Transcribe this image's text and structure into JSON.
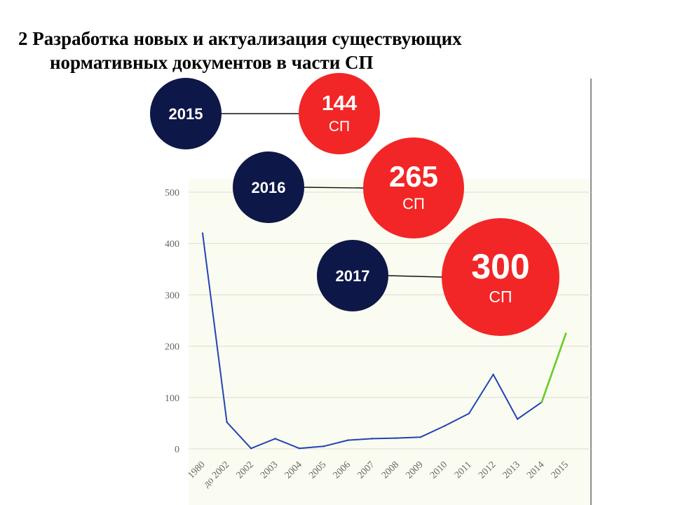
{
  "slide": {
    "title_line1": "2 Разработка новых и актуализация существующих",
    "title_line2": "нормативных документов в части СП"
  },
  "colors": {
    "series_main": "#2243b6",
    "series_highlight": "#66cc22",
    "navy": "#0d1748",
    "red": "#f22626",
    "plot_bg": "#fbfcf1",
    "grid": "#dcdcd0"
  },
  "bubbles": [
    {
      "year": "2015",
      "value": "144",
      "unit": "СП"
    },
    {
      "year": "2016",
      "value": "265",
      "unit": "СП"
    },
    {
      "year": "2017",
      "value": "300",
      "unit": "СП"
    }
  ],
  "chart_data": {
    "type": "line",
    "categories": [
      "1980",
      "до 2002",
      "2002",
      "2003",
      "2004",
      "2005",
      "2006",
      "2007",
      "2008",
      "2009",
      "2010",
      "2011",
      "2012",
      "2013",
      "2014",
      "2015"
    ],
    "series": [
      {
        "values": [
          420,
          52,
          1,
          20,
          1,
          5,
          17,
          20,
          21,
          23,
          45,
          69,
          145,
          58,
          91,
          null
        ],
        "color": "#2243b6"
      },
      {
        "values": [
          null,
          null,
          null,
          null,
          null,
          null,
          null,
          null,
          null,
          null,
          null,
          null,
          null,
          null,
          91,
          225
        ],
        "color": "#66cc22"
      }
    ],
    "yticks": [
      0,
      100,
      200,
      300,
      400,
      500
    ],
    "ylim": [
      0,
      520
    ],
    "grid": true,
    "legend": "none"
  }
}
